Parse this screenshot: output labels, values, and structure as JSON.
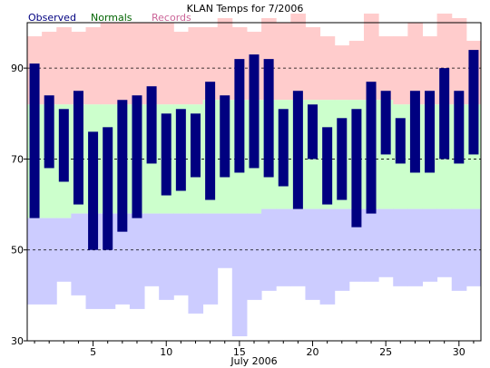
{
  "chart_data": {
    "type": "bar",
    "title": "KLAN Temps for 7/2006",
    "xlabel": "July 2006",
    "ylabel": "",
    "xlim": [
      0.5,
      31.5
    ],
    "ylim": [
      30,
      100
    ],
    "grid": "dashed-horizontal",
    "legend_position": "top-left",
    "x_ticks": [
      "5",
      "10",
      "15",
      "20",
      "25",
      "30"
    ],
    "y_ticks": [
      "30",
      "50",
      "70",
      "90"
    ],
    "days": [
      1,
      2,
      3,
      4,
      5,
      6,
      7,
      8,
      9,
      10,
      11,
      12,
      13,
      14,
      15,
      16,
      17,
      18,
      19,
      20,
      21,
      22,
      23,
      24,
      25,
      26,
      27,
      28,
      29,
      30,
      31
    ],
    "series": [
      {
        "name": "Observed",
        "color": "#000080",
        "highs": [
          91,
          84,
          81,
          85,
          76,
          77,
          83,
          84,
          86,
          80,
          81,
          80,
          87,
          84,
          92,
          93,
          92,
          81,
          85,
          82,
          77,
          79,
          81,
          87,
          85,
          79,
          85,
          85,
          90,
          85,
          94
        ],
        "lows": [
          57,
          68,
          65,
          60,
          50,
          50,
          54,
          57,
          69,
          62,
          63,
          66,
          61,
          66,
          67,
          68,
          66,
          64,
          59,
          70,
          60,
          61,
          55,
          58,
          71,
          69,
          67,
          67,
          70,
          69,
          71
        ]
      },
      {
        "name": "Normals",
        "color": "#006400",
        "fill": "#ccffcc",
        "highs": [
          82,
          82,
          82,
          82,
          82,
          82,
          82,
          82,
          82,
          82,
          82,
          82,
          83,
          83,
          83,
          83,
          83,
          83,
          83,
          83,
          83,
          83,
          83,
          83,
          83,
          82,
          82,
          82,
          82,
          82,
          82
        ],
        "lows": [
          57,
          57,
          57,
          58,
          58,
          58,
          58,
          58,
          58,
          58,
          58,
          58,
          58,
          58,
          58,
          58,
          59,
          59,
          59,
          59,
          59,
          59,
          59,
          59,
          59,
          59,
          59,
          59,
          59,
          59,
          59
        ]
      },
      {
        "name": "Records",
        "color": "#cc6699",
        "fill": "#ffcccc",
        "highs": [
          97,
          98,
          99,
          98,
          99,
          100,
          100,
          100,
          100,
          100,
          98,
          99,
          99,
          101,
          99,
          98,
          101,
          100,
          102,
          99,
          97,
          95,
          96,
          102,
          97,
          97,
          100,
          97,
          102,
          101,
          96
        ],
        "lows": [
          38,
          38,
          43,
          40,
          37,
          37,
          38,
          37,
          42,
          39,
          40,
          36,
          38,
          46,
          31,
          39,
          41,
          42,
          42,
          39,
          38,
          41,
          43,
          43,
          44,
          42,
          42,
          43,
          44,
          41,
          42
        ]
      }
    ],
    "minor_fill": "#ccccff"
  }
}
